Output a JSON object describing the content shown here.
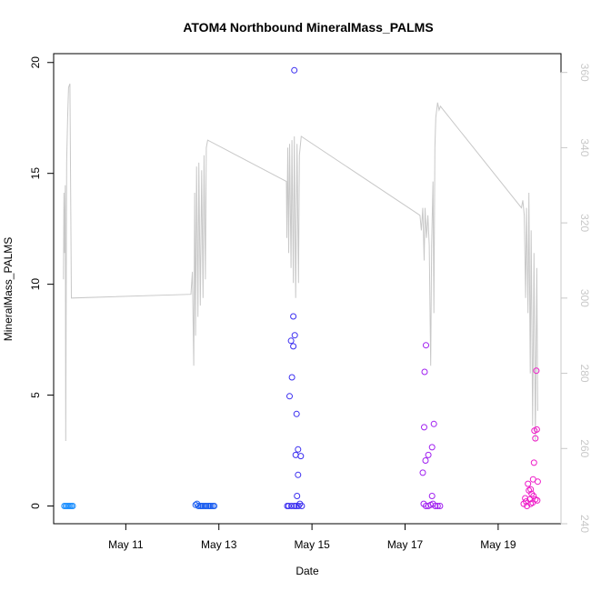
{
  "chart_data": {
    "type": "scatter",
    "title": "ATOM4 Northbound MineralMass_PALMS",
    "xlabel": "Date",
    "ylabel": "MineralMass_PALMS",
    "x_ticks": [
      {
        "value": 11,
        "label": "May 11"
      },
      {
        "value": 13,
        "label": "May 13"
      },
      {
        "value": 15,
        "label": "May 15"
      },
      {
        "value": 17,
        "label": "May 17"
      },
      {
        "value": 19,
        "label": "May 19"
      }
    ],
    "xlim": [
      9.45,
      20.35
    ],
    "ylim": [
      -0.8,
      20.4
    ],
    "y_ticks": [
      0,
      5,
      10,
      15,
      20
    ],
    "y2lim": [
      240,
      365
    ],
    "y2_ticks": [
      240,
      260,
      280,
      300,
      320,
      340,
      360
    ],
    "y2_color": "#c8c8c8",
    "line_color": "#c8c8c8",
    "grid": false,
    "points": [
      {
        "x": 9.68,
        "y": 0.0,
        "color": "#1e90ff"
      },
      {
        "x": 9.71,
        "y": 0.0,
        "color": "#1e90ff"
      },
      {
        "x": 9.74,
        "y": 0.0,
        "color": "#1e90ff"
      },
      {
        "x": 9.77,
        "y": 0.0,
        "color": "#1e90ff"
      },
      {
        "x": 9.8,
        "y": 0.0,
        "color": "#1e90ff"
      },
      {
        "x": 9.83,
        "y": 0.0,
        "color": "#1e90ff"
      },
      {
        "x": 9.86,
        "y": 0.0,
        "color": "#1e90ff"
      },
      {
        "x": 12.5,
        "y": 0.05,
        "color": "#1c5ef0"
      },
      {
        "x": 12.53,
        "y": 0.1,
        "color": "#1c5ef0"
      },
      {
        "x": 12.56,
        "y": 0.0,
        "color": "#1c5ef0"
      },
      {
        "x": 12.6,
        "y": 0.0,
        "color": "#1c5ef0"
      },
      {
        "x": 12.63,
        "y": 0.0,
        "color": "#1c5ef0"
      },
      {
        "x": 12.66,
        "y": 0.0,
        "color": "#1c5ef0"
      },
      {
        "x": 12.7,
        "y": 0.0,
        "color": "#1c5ef0"
      },
      {
        "x": 12.73,
        "y": 0.0,
        "color": "#1c5ef0"
      },
      {
        "x": 12.77,
        "y": 0.0,
        "color": "#1c5ef0"
      },
      {
        "x": 12.8,
        "y": 0.0,
        "color": "#1c5ef0"
      },
      {
        "x": 12.83,
        "y": 0.0,
        "color": "#1c5ef0"
      },
      {
        "x": 12.87,
        "y": 0.0,
        "color": "#1c5ef0"
      },
      {
        "x": 12.9,
        "y": 0.0,
        "color": "#1c5ef0"
      },
      {
        "x": 14.47,
        "y": 0.0,
        "color": "#3b2ef0"
      },
      {
        "x": 14.52,
        "y": 4.95,
        "color": "#3b2ef0"
      },
      {
        "x": 14.55,
        "y": 7.45,
        "color": "#3b2ef0"
      },
      {
        "x": 14.57,
        "y": 5.8,
        "color": "#3b2ef0"
      },
      {
        "x": 14.6,
        "y": 8.55,
        "color": "#3b2ef0"
      },
      {
        "x": 14.6,
        "y": 7.2,
        "color": "#3b2ef0"
      },
      {
        "x": 14.62,
        "y": 19.65,
        "color": "#3b2ef0"
      },
      {
        "x": 14.63,
        "y": 7.7,
        "color": "#3b2ef0"
      },
      {
        "x": 14.65,
        "y": 2.3,
        "color": "#3b2ef0"
      },
      {
        "x": 14.67,
        "y": 4.15,
        "color": "#3b2ef0"
      },
      {
        "x": 14.7,
        "y": 2.55,
        "color": "#3b2ef0"
      },
      {
        "x": 14.7,
        "y": 1.4,
        "color": "#3b2ef0"
      },
      {
        "x": 14.68,
        "y": 0.45,
        "color": "#3b2ef0"
      },
      {
        "x": 14.76,
        "y": 2.25,
        "color": "#3b2ef0"
      },
      {
        "x": 14.5,
        "y": 0.0,
        "color": "#3b2ef0"
      },
      {
        "x": 14.56,
        "y": 0.0,
        "color": "#3b2ef0"
      },
      {
        "x": 14.62,
        "y": 0.0,
        "color": "#3b2ef0"
      },
      {
        "x": 14.66,
        "y": 0.0,
        "color": "#3b2ef0"
      },
      {
        "x": 14.71,
        "y": 0.0,
        "color": "#3b2ef0"
      },
      {
        "x": 14.74,
        "y": 0.1,
        "color": "#3b2ef0"
      },
      {
        "x": 14.78,
        "y": 0.0,
        "color": "#3b2ef0"
      },
      {
        "x": 17.38,
        "y": 1.5,
        "color": "#a020f0"
      },
      {
        "x": 17.41,
        "y": 3.55,
        "color": "#a020f0"
      },
      {
        "x": 17.42,
        "y": 6.05,
        "color": "#a020f0"
      },
      {
        "x": 17.45,
        "y": 7.25,
        "color": "#a020f0"
      },
      {
        "x": 17.44,
        "y": 2.05,
        "color": "#a020f0"
      },
      {
        "x": 17.5,
        "y": 2.3,
        "color": "#a020f0"
      },
      {
        "x": 17.58,
        "y": 2.65,
        "color": "#a020f0"
      },
      {
        "x": 17.62,
        "y": 3.7,
        "color": "#a020f0"
      },
      {
        "x": 17.58,
        "y": 0.45,
        "color": "#a020f0"
      },
      {
        "x": 17.4,
        "y": 0.1,
        "color": "#a020f0"
      },
      {
        "x": 17.45,
        "y": 0.0,
        "color": "#a020f0"
      },
      {
        "x": 17.5,
        "y": 0.0,
        "color": "#a020f0"
      },
      {
        "x": 17.55,
        "y": 0.05,
        "color": "#a020f0"
      },
      {
        "x": 17.6,
        "y": 0.1,
        "color": "#a020f0"
      },
      {
        "x": 17.65,
        "y": 0.0,
        "color": "#a020f0"
      },
      {
        "x": 17.7,
        "y": 0.0,
        "color": "#a020f0"
      },
      {
        "x": 17.75,
        "y": 0.0,
        "color": "#a020f0"
      },
      {
        "x": 19.55,
        "y": 0.1,
        "color": "#ee1cc8"
      },
      {
        "x": 19.58,
        "y": 0.35,
        "color": "#ee1cc8"
      },
      {
        "x": 19.62,
        "y": 0.0,
        "color": "#ee1cc8"
      },
      {
        "x": 19.64,
        "y": 1.0,
        "color": "#ee1cc8"
      },
      {
        "x": 19.66,
        "y": 0.7,
        "color": "#ee1cc8"
      },
      {
        "x": 19.68,
        "y": 0.3,
        "color": "#ee1cc8"
      },
      {
        "x": 19.7,
        "y": 0.75,
        "color": "#ee1cc8"
      },
      {
        "x": 19.72,
        "y": 0.55,
        "color": "#ee1cc8"
      },
      {
        "x": 19.74,
        "y": 0.15,
        "color": "#ee1cc8"
      },
      {
        "x": 19.75,
        "y": 1.2,
        "color": "#ee1cc8"
      },
      {
        "x": 19.77,
        "y": 1.95,
        "color": "#ee1cc8"
      },
      {
        "x": 19.78,
        "y": 3.4,
        "color": "#ee1cc8"
      },
      {
        "x": 19.8,
        "y": 3.05,
        "color": "#ee1cc8"
      },
      {
        "x": 19.82,
        "y": 6.1,
        "color": "#ee1cc8"
      },
      {
        "x": 19.83,
        "y": 3.45,
        "color": "#ee1cc8"
      },
      {
        "x": 19.85,
        "y": 1.1,
        "color": "#ee1cc8"
      },
      {
        "x": 19.8,
        "y": 0.3,
        "color": "#ee1cc8"
      },
      {
        "x": 19.6,
        "y": 0.2,
        "color": "#ee1cc8"
      },
      {
        "x": 19.7,
        "y": 0.1,
        "color": "#ee1cc8"
      },
      {
        "x": 19.76,
        "y": 0.45,
        "color": "#ee1cc8"
      },
      {
        "x": 19.84,
        "y": 0.25,
        "color": "#ee1cc8"
      }
    ],
    "line_y2": [
      [
        9.66,
        305
      ],
      [
        9.67,
        328
      ],
      [
        9.685,
        312
      ],
      [
        9.7,
        330
      ],
      [
        9.71,
        262
      ],
      [
        9.73,
        336
      ],
      [
        9.75,
        348
      ],
      [
        9.77,
        356
      ],
      [
        9.8,
        357
      ],
      [
        9.83,
        300
      ],
      [
        12.4,
        301
      ],
      [
        12.43,
        307
      ],
      [
        12.46,
        282
      ],
      [
        12.48,
        328
      ],
      [
        12.5,
        290
      ],
      [
        12.52,
        335
      ],
      [
        12.55,
        295
      ],
      [
        12.57,
        336
      ],
      [
        12.6,
        298
      ],
      [
        12.63,
        334
      ],
      [
        12.66,
        300
      ],
      [
        12.68,
        338
      ],
      [
        12.71,
        305
      ],
      [
        12.73,
        340
      ],
      [
        12.76,
        342
      ],
      [
        14.45,
        331
      ],
      [
        14.46,
        316
      ],
      [
        14.48,
        340
      ],
      [
        14.5,
        312
      ],
      [
        14.52,
        341
      ],
      [
        14.55,
        308
      ],
      [
        14.57,
        342
      ],
      [
        14.6,
        304
      ],
      [
        14.62,
        343
      ],
      [
        14.65,
        300
      ],
      [
        14.68,
        341
      ],
      [
        14.71,
        304
      ],
      [
        14.73,
        338
      ],
      [
        14.77,
        343
      ],
      [
        17.32,
        322
      ],
      [
        17.35,
        318
      ],
      [
        17.38,
        324
      ],
      [
        17.41,
        310
      ],
      [
        17.43,
        324
      ],
      [
        17.46,
        316
      ],
      [
        17.49,
        322
      ],
      [
        17.52,
        314
      ],
      [
        17.55,
        282
      ],
      [
        17.57,
        314
      ],
      [
        17.6,
        331
      ],
      [
        17.62,
        296
      ],
      [
        17.64,
        340
      ],
      [
        17.66,
        348
      ],
      [
        17.7,
        352
      ],
      [
        17.73,
        350
      ],
      [
        17.76,
        351
      ],
      [
        19.5,
        324
      ],
      [
        19.53,
        326
      ],
      [
        19.56,
        322
      ],
      [
        19.59,
        300
      ],
      [
        19.61,
        324
      ],
      [
        19.64,
        296
      ],
      [
        19.66,
        328
      ],
      [
        19.69,
        280
      ],
      [
        19.71,
        318
      ],
      [
        19.74,
        266
      ],
      [
        19.77,
        312
      ],
      [
        19.8,
        262
      ],
      [
        19.83,
        308
      ],
      [
        19.85,
        270
      ]
    ]
  }
}
